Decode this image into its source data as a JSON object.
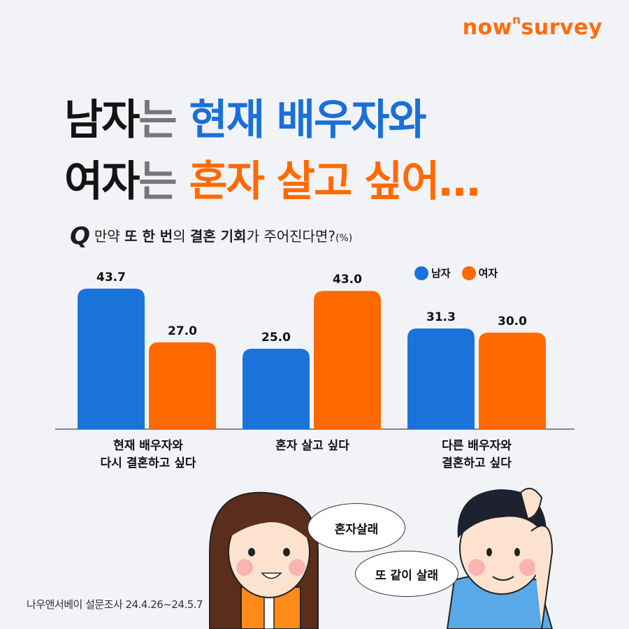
{
  "brand": {
    "logo_main": "now",
    "logo_sup": "n",
    "logo_end": "survey"
  },
  "headline": {
    "line1_a": "남자",
    "line1_b": "는 ",
    "line1_c": "현재 배우자와",
    "line2_a": "여자",
    "line2_b": "는 ",
    "line2_c": "혼자 살고 싶어…"
  },
  "question": {
    "mark": "Q",
    "text_prefix": "만약 ",
    "text_bold1": "또 한 번",
    "text_mid": "의 ",
    "text_bold2": "결혼 기회",
    "text_suffix": "가 주어진다면?",
    "unit": "(%)"
  },
  "legend": [
    {
      "label": "남자",
      "color": "#1a73d9"
    },
    {
      "label": "여자",
      "color": "#ff6a00"
    }
  ],
  "chart_data": {
    "type": "bar",
    "categories": [
      "현재 배우자와\n다시 결혼하고 싶다",
      "혼자 살고 싶다",
      "다른 배우자와\n결혼하고 싶다"
    ],
    "series": [
      {
        "name": "남자",
        "color": "#1a73d9",
        "values": [
          43.7,
          25.0,
          31.3
        ]
      },
      {
        "name": "여자",
        "color": "#ff6a00",
        "values": [
          27.0,
          43.0,
          30.0
        ]
      }
    ],
    "ylim": [
      0,
      50
    ],
    "grid": false
  },
  "category_labels": [
    {
      "line1": "현재 배우자와",
      "line2": "다시 결혼하고 싶다"
    },
    {
      "line1": "혼자 살고 싶다",
      "line2": ""
    },
    {
      "line1": "다른 배우자와",
      "line2": "결혼하고 싶다"
    }
  ],
  "bubbles": {
    "woman": "혼자살래",
    "man": "또 같이 살래"
  },
  "source": "나우앤서베이 설문조사 24.4.26~24.5.7"
}
